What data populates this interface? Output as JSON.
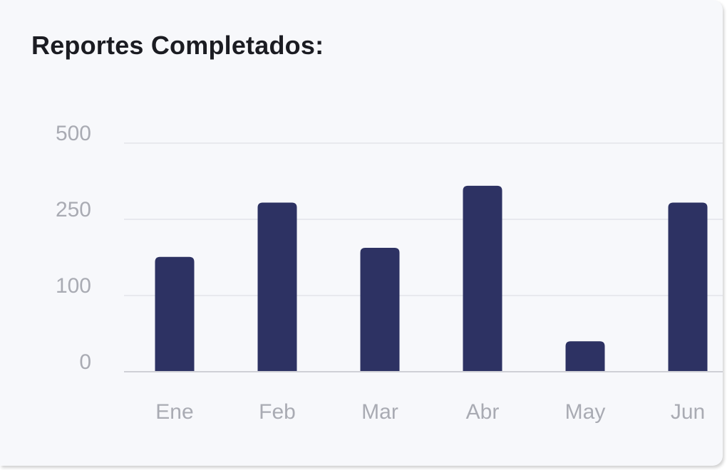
{
  "card": {
    "title": "Reportes Completados:"
  },
  "chart_data": {
    "type": "bar",
    "title": "Reportes Completados:",
    "xlabel": "",
    "ylabel": "",
    "y_scale": "piecewise (ticks 0, 100, 250, 500 evenly spaced)",
    "yticks": [
      "0",
      "100",
      "250",
      "500"
    ],
    "ylim": [
      0,
      500
    ],
    "grid": true,
    "legend": "none",
    "categories": [
      "Ene",
      "Feb",
      "Mar",
      "Abr",
      "May",
      "Jun"
    ],
    "values": [
      176,
      305,
      194,
      360,
      40,
      305
    ],
    "bar_color": "#2d3263"
  },
  "colors": {
    "bar": "#2d3263",
    "grid": "#e8e9ee",
    "axis": "#cfd0d6",
    "tick_text": "#a9abb3",
    "title": "#1b1c22",
    "card_bg": "#f7f8fb"
  }
}
